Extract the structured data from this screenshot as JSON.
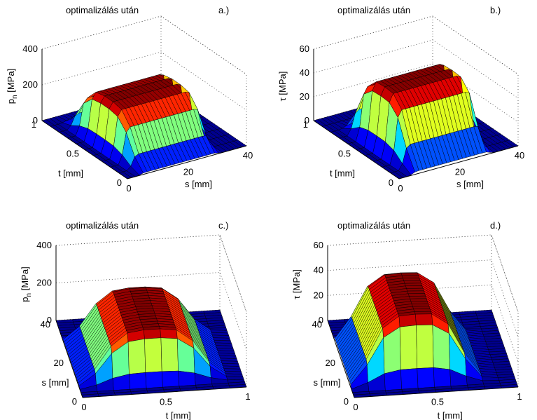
{
  "colors": {
    "colormap": [
      "#00008f",
      "#0000ff",
      "#007fff",
      "#00ffff",
      "#7fff7f",
      "#ffff00",
      "#ff7f00",
      "#ff0000",
      "#7f0000"
    ],
    "floor": "#0010a0"
  },
  "chart_data": [
    {
      "type": "surface",
      "title": "optimalizálás után",
      "tag": "a.)",
      "xlabel": "s [mm]",
      "ylabel": "t [mm]",
      "zlabel_main": "p",
      "zlabel_sub": "n",
      "zlabel_unit": " [MPa]",
      "xlim": [
        0,
        40
      ],
      "ylim": [
        0,
        1
      ],
      "zlim": [
        0,
        400
      ],
      "xticks": [
        "0",
        "20",
        "40"
      ],
      "yticks": [
        "0",
        "0.5",
        "1"
      ],
      "zticks": [
        "0",
        "200",
        "400"
      ],
      "view": "s-right",
      "surface": {
        "ncols": 30,
        "nrows": 10,
        "max": 270,
        "s_start": 3,
        "s_end": 32,
        "t_peak": 0.45,
        "t_width": 0.33
      },
      "grid": "on"
    },
    {
      "type": "surface",
      "title": "optimalizálás után",
      "tag": "b.)",
      "xlabel": "s [mm]",
      "ylabel": "t [mm]",
      "zlabel_main": "τ",
      "zlabel_sub": "",
      "zlabel_unit": " [MPa]",
      "xlim": [
        0,
        40
      ],
      "ylim": [
        0,
        1
      ],
      "zlim": [
        0,
        60
      ],
      "xticks": [
        "0",
        "20",
        "40"
      ],
      "yticks": [
        "0",
        "0.5",
        "1"
      ],
      "zticks": [
        "0",
        "20",
        "40",
        "60"
      ],
      "view": "s-right",
      "surface": {
        "ncols": 30,
        "nrows": 10,
        "max": 53,
        "s_start": 3,
        "s_end": 32,
        "t_peak": 0.4,
        "t_width": 0.3
      },
      "grid": "on"
    },
    {
      "type": "surface",
      "title": "optimalizálás után",
      "tag": "c.)",
      "xlabel": "t [mm]",
      "ylabel": "s [mm]",
      "zlabel_main": "p",
      "zlabel_sub": "n",
      "zlabel_unit": " [MPa]",
      "xlim": [
        0,
        1
      ],
      "ylim": [
        0,
        40
      ],
      "zlim": [
        0,
        400
      ],
      "xticks": [
        "0",
        "0.5",
        "1"
      ],
      "yticks": [
        "0",
        "20",
        "40"
      ],
      "zticks": [
        "0",
        "200",
        "400"
      ],
      "view": "t-right",
      "surface": {
        "ncols": 10,
        "nrows": 30,
        "max": 270,
        "s_start": 3,
        "s_end": 32,
        "t_peak": 0.45,
        "t_width": 0.33
      },
      "grid": "on"
    },
    {
      "type": "surface",
      "title": "optimalizálás után",
      "tag": "d.)",
      "xlabel": "t [mm]",
      "ylabel": "s [mm]",
      "zlabel_main": "τ",
      "zlabel_sub": "",
      "zlabel_unit": " [MPa]",
      "xlim": [
        0,
        1
      ],
      "ylim": [
        0,
        40
      ],
      "zlim": [
        0,
        60
      ],
      "xticks": [
        "0",
        "0.5",
        "1"
      ],
      "yticks": [
        "0",
        "20",
        "40"
      ],
      "zticks": [
        "0",
        "20",
        "40",
        "60"
      ],
      "view": "t-right",
      "surface": {
        "ncols": 10,
        "nrows": 30,
        "max": 53,
        "s_start": 3,
        "s_end": 32,
        "t_peak": 0.4,
        "t_width": 0.3
      },
      "grid": "on"
    }
  ]
}
